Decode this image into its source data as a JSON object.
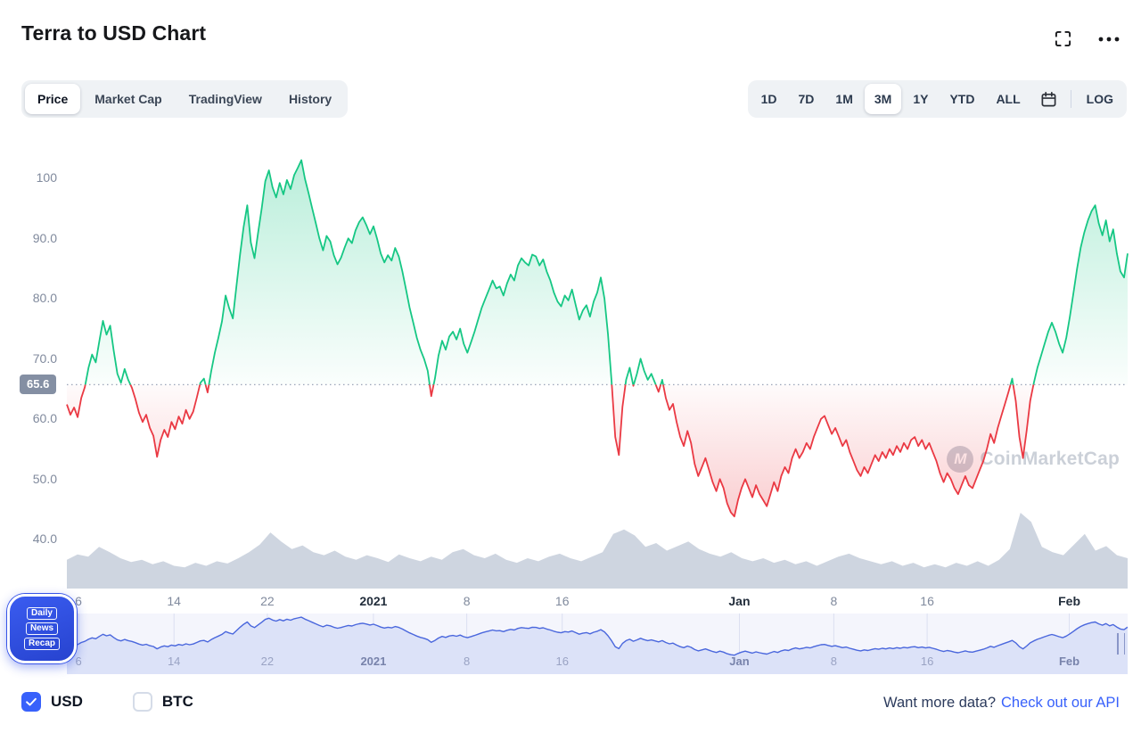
{
  "header": {
    "title": "Terra to USD Chart"
  },
  "tabs": {
    "items": [
      "Price",
      "Market Cap",
      "TradingView",
      "History"
    ],
    "active": "Price"
  },
  "ranges": {
    "items": [
      "1D",
      "7D",
      "1M",
      "3M",
      "1Y",
      "YTD",
      "ALL"
    ],
    "active": "3M",
    "log": "LOG"
  },
  "watermark": {
    "text": "CoinMarketCap",
    "logo_letter": "M"
  },
  "news_badge": {
    "lines": [
      "Daily",
      "News",
      "Recap"
    ]
  },
  "legend": {
    "items": [
      {
        "label": "USD",
        "checked": true
      },
      {
        "label": "BTC",
        "checked": false
      }
    ]
  },
  "footer": {
    "prompt": "Want more data?",
    "link": "Check out our API"
  },
  "chart_data": {
    "type": "line",
    "title": "Terra to USD Chart",
    "current_price": 65.6,
    "current_price_label": "65.6",
    "ylim": [
      40,
      104
    ],
    "grid": false,
    "legend_position": "none",
    "y_ticks": [
      {
        "label": "100",
        "value": 100
      },
      {
        "label": "90.0",
        "value": 90
      },
      {
        "label": "80.0",
        "value": 80
      },
      {
        "label": "70.0",
        "value": 70
      },
      {
        "label": "60.0",
        "value": 60
      },
      {
        "label": "50.0",
        "value": 50
      },
      {
        "label": "40.0",
        "value": 40
      }
    ],
    "x_ticks": [
      {
        "label": "6",
        "pos": 0.011,
        "bold": false
      },
      {
        "label": "14",
        "pos": 0.101,
        "bold": false
      },
      {
        "label": "22",
        "pos": 0.189,
        "bold": false
      },
      {
        "label": "2021",
        "pos": 0.289,
        "bold": true
      },
      {
        "label": "8",
        "pos": 0.377,
        "bold": false
      },
      {
        "label": "16",
        "pos": 0.467,
        "bold": false
      },
      {
        "label": "Jan",
        "pos": 0.634,
        "bold": true
      },
      {
        "label": "8",
        "pos": 0.723,
        "bold": false
      },
      {
        "label": "16",
        "pos": 0.811,
        "bold": false
      },
      {
        "label": "Feb",
        "pos": 0.945,
        "bold": true
      }
    ],
    "price": [
      62.3,
      60.6,
      61.8,
      60.2,
      63.4,
      65.2,
      68.4,
      70.6,
      69.3,
      72.8,
      76.2,
      73.9,
      75.4,
      71.2,
      67.4,
      65.9,
      68.2,
      66.4,
      65.1,
      63.2,
      60.9,
      59.4,
      60.6,
      58.4,
      57.1,
      53.6,
      56.4,
      58.1,
      56.9,
      59.4,
      58.2,
      60.3,
      59.1,
      61.4,
      59.9,
      61.1,
      63.4,
      65.9,
      66.6,
      64.3,
      67.8,
      70.9,
      73.4,
      76.1,
      80.4,
      78.3,
      76.6,
      81.9,
      87.2,
      91.8,
      95.4,
      89.2,
      86.6,
      90.8,
      94.9,
      99.4,
      101.2,
      98.4,
      96.7,
      99.1,
      97.2,
      99.6,
      98.1,
      100.4,
      101.6,
      102.9,
      99.8,
      97.4,
      94.9,
      92.4,
      89.9,
      87.9,
      90.3,
      89.4,
      87.1,
      85.6,
      86.7,
      88.4,
      89.9,
      89.1,
      91.2,
      92.6,
      93.4,
      92.1,
      90.6,
      91.9,
      89.8,
      87.4,
      85.9,
      87.1,
      86.2,
      88.3,
      86.9,
      84.4,
      81.4,
      78.4,
      75.9,
      73.4,
      71.4,
      69.9,
      67.9,
      63.7,
      66.6,
      70.4,
      72.9,
      71.4,
      73.6,
      74.4,
      73.1,
      74.9,
      72.4,
      70.9,
      72.6,
      74.4,
      76.4,
      78.4,
      79.9,
      81.4,
      82.9,
      81.6,
      81.9,
      80.4,
      82.4,
      83.9,
      82.9,
      85.4,
      86.6,
      85.9,
      85.4,
      87.2,
      86.9,
      85.4,
      86.4,
      84.4,
      82.9,
      80.9,
      79.4,
      78.6,
      80.4,
      79.6,
      81.4,
      78.9,
      76.4,
      77.9,
      78.8,
      76.9,
      79.4,
      80.9,
      83.4,
      79.9,
      73.9,
      65.9,
      56.9,
      53.9,
      61.9,
      66.4,
      68.4,
      65.4,
      67.4,
      69.9,
      67.9,
      66.4,
      67.4,
      65.9,
      64.4,
      66.4,
      63.4,
      61.4,
      62.4,
      59.4,
      56.9,
      55.4,
      57.9,
      55.9,
      52.4,
      50.4,
      51.9,
      53.4,
      51.4,
      49.4,
      47.9,
      49.9,
      48.4,
      45.9,
      44.4,
      43.7,
      46.4,
      48.4,
      49.9,
      48.4,
      46.9,
      48.9,
      47.4,
      46.4,
      45.4,
      47.4,
      49.4,
      47.9,
      50.4,
      51.9,
      50.9,
      53.4,
      54.9,
      53.4,
      54.4,
      55.9,
      54.9,
      56.9,
      58.4,
      59.9,
      60.4,
      58.9,
      57.4,
      58.4,
      56.9,
      55.4,
      56.4,
      54.4,
      52.9,
      51.4,
      50.4,
      51.9,
      50.9,
      52.4,
      53.9,
      52.9,
      54.4,
      53.4,
      54.9,
      53.9,
      55.4,
      54.4,
      55.9,
      54.9,
      56.4,
      56.9,
      55.4,
      56.4,
      54.9,
      55.9,
      54.4,
      52.9,
      50.9,
      49.4,
      50.9,
      49.9,
      48.4,
      47.4,
      48.9,
      50.4,
      48.9,
      48.4,
      49.9,
      51.4,
      52.9,
      54.9,
      57.4,
      55.9,
      58.4,
      60.4,
      62.4,
      64.4,
      66.6,
      62.9,
      56.9,
      53.4,
      57.9,
      62.9,
      65.9,
      68.4,
      70.4,
      72.4,
      74.4,
      75.9,
      74.4,
      72.4,
      70.9,
      73.4,
      76.9,
      80.9,
      84.9,
      88.4,
      90.9,
      92.9,
      94.4,
      95.4,
      92.4,
      90.4,
      92.9,
      89.4,
      91.4,
      87.4,
      84.4,
      83.4,
      87.4
    ],
    "volume": [
      38,
      45,
      42,
      55,
      48,
      40,
      35,
      38,
      32,
      36,
      30,
      28,
      34,
      30,
      36,
      33,
      40,
      48,
      58,
      74,
      62,
      52,
      57,
      48,
      44,
      50,
      42,
      38,
      44,
      40,
      35,
      45,
      40,
      36,
      42,
      38,
      48,
      52,
      44,
      40,
      46,
      38,
      34,
      40,
      36,
      42,
      46,
      40,
      36,
      42,
      48,
      72,
      78,
      70,
      55,
      60,
      50,
      56,
      62,
      52,
      46,
      42,
      48,
      40,
      36,
      40,
      34,
      38,
      32,
      36,
      30,
      36,
      42,
      46,
      40,
      36,
      32,
      36,
      30,
      34,
      28,
      32,
      28,
      34,
      30,
      36,
      30,
      38,
      52,
      100,
      88,
      55,
      48,
      44,
      58,
      72,
      50,
      56,
      44,
      40
    ],
    "colors": {
      "up": "#16c784",
      "down": "#ea3943",
      "volume": "#ced5e0",
      "threshold_line": "#9aa4b8",
      "badge_bg": "#848fa3",
      "navigator_line": "#4a67dd",
      "navigator_fill": "#dce2f8",
      "navigator_bg": "#f4f5fc",
      "accent": "#3861fb"
    }
  }
}
